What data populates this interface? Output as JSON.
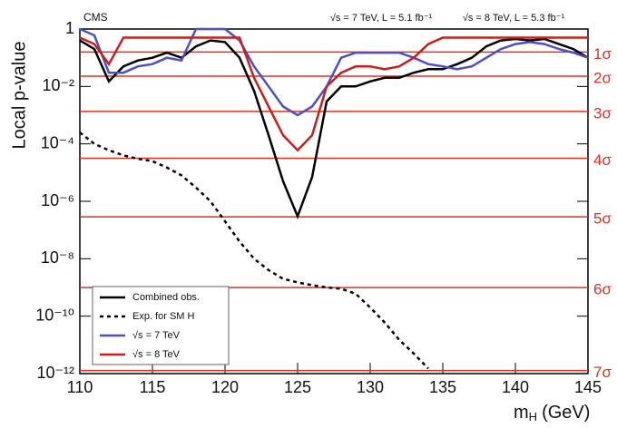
{
  "chart_data": {
    "type": "line",
    "log_y": true,
    "x_label": {
      "main": "m",
      "sub": "H",
      "unit": "(GeV)"
    },
    "y_label": "Local p-value",
    "annotations": [
      "CMS",
      "√s = 7 TeV, L = 5.1 fb⁻¹",
      "√s = 8 TeV, L = 5.3 fb⁻¹"
    ],
    "xlim": [
      110,
      145
    ],
    "xticks": [
      110,
      115,
      120,
      125,
      130,
      135,
      140,
      145
    ],
    "ylim": [
      1e-12,
      1
    ],
    "yticks": [
      {
        "value": 1e-12,
        "label": "10⁻¹²"
      },
      {
        "value": 1e-10,
        "label": "10⁻¹⁰"
      },
      {
        "value": 1e-08,
        "label": "10⁻⁸"
      },
      {
        "value": 1e-06,
        "label": "10⁻⁶"
      },
      {
        "value": 0.0001,
        "label": "10⁻⁴"
      },
      {
        "value": 0.01,
        "label": "10⁻²"
      },
      1
    ],
    "hlines_color": "#e0301e",
    "hlines": [
      {
        "value": 0.1587,
        "label": "1σ"
      },
      {
        "value": 0.02275,
        "label": "2σ"
      },
      {
        "value": 0.00135,
        "label": "3σ"
      },
      {
        "value": 3.17e-05,
        "label": "4σ"
      },
      {
        "value": 2.87e-07,
        "label": "5σ"
      },
      {
        "value": 9.87e-10,
        "label": "6σ"
      },
      {
        "value": 1.28e-12,
        "label": "7σ"
      }
    ],
    "legend": "lower left",
    "x": [
      110,
      111,
      112,
      113,
      114,
      115,
      116,
      117,
      118,
      119,
      120,
      121,
      122,
      123,
      124,
      125,
      126,
      127,
      128,
      129,
      130,
      131,
      132,
      133,
      134,
      135,
      136,
      137,
      138,
      139,
      140,
      141,
      142,
      143,
      144,
      145
    ],
    "series": [
      {
        "name": "Combined  obs.",
        "color": "#000000",
        "dash": false,
        "values": [
          0.4,
          0.2,
          0.015,
          0.05,
          0.08,
          0.1,
          0.15,
          0.1,
          0.25,
          0.4,
          0.35,
          0.1,
          0.007,
          0.0002,
          5e-06,
          3e-07,
          7e-06,
          0.003,
          0.01,
          0.01,
          0.015,
          0.02,
          0.02,
          0.03,
          0.04,
          0.04,
          0.06,
          0.1,
          0.25,
          0.4,
          0.45,
          0.4,
          0.45,
          0.3,
          0.2,
          0.1
        ]
      },
      {
        "name": "Exp. for SM H",
        "color": "#000000",
        "dash": true,
        "values": [
          0.00025,
          0.0001,
          6e-05,
          4e-05,
          3e-05,
          2.5e-05,
          1.5e-05,
          8e-06,
          3e-06,
          1e-06,
          2e-07,
          4e-08,
          1e-08,
          4e-09,
          2e-09,
          1.5e-09,
          1.2e-09,
          1e-09,
          9e-10,
          6e-10,
          2e-10,
          6e-11,
          1.5e-11,
          5e-12,
          1.5e-12,
          null,
          null,
          null,
          null,
          null,
          null,
          null,
          null,
          null,
          null,
          null
        ]
      },
      {
        "name": "√s = 7 TeV",
        "color": "#4a50c8",
        "dash": false,
        "values": [
          1,
          0.6,
          0.03,
          0.03,
          0.05,
          0.06,
          0.1,
          0.08,
          1,
          1,
          1,
          0.4,
          0.05,
          0.01,
          0.002,
          0.001,
          0.002,
          0.01,
          0.1,
          0.15,
          0.15,
          0.15,
          0.15,
          0.1,
          0.06,
          0.05,
          0.04,
          0.05,
          0.1,
          0.2,
          0.3,
          0.35,
          0.3,
          0.2,
          0.15,
          0.1
        ]
      },
      {
        "name": "√s = 8 TeV",
        "color": "#c8201a",
        "dash": false,
        "values": [
          0.5,
          0.3,
          0.06,
          0.5,
          0.5,
          0.5,
          0.5,
          0.5,
          0.5,
          0.5,
          0.5,
          0.5,
          0.02,
          0.002,
          0.0002,
          6e-05,
          0.0002,
          0.01,
          0.03,
          0.05,
          0.05,
          0.04,
          0.05,
          0.1,
          0.3,
          0.5,
          0.5,
          0.5,
          0.5,
          0.5,
          0.5,
          0.5,
          0.5,
          0.5,
          0.5,
          0.5
        ]
      }
    ]
  }
}
